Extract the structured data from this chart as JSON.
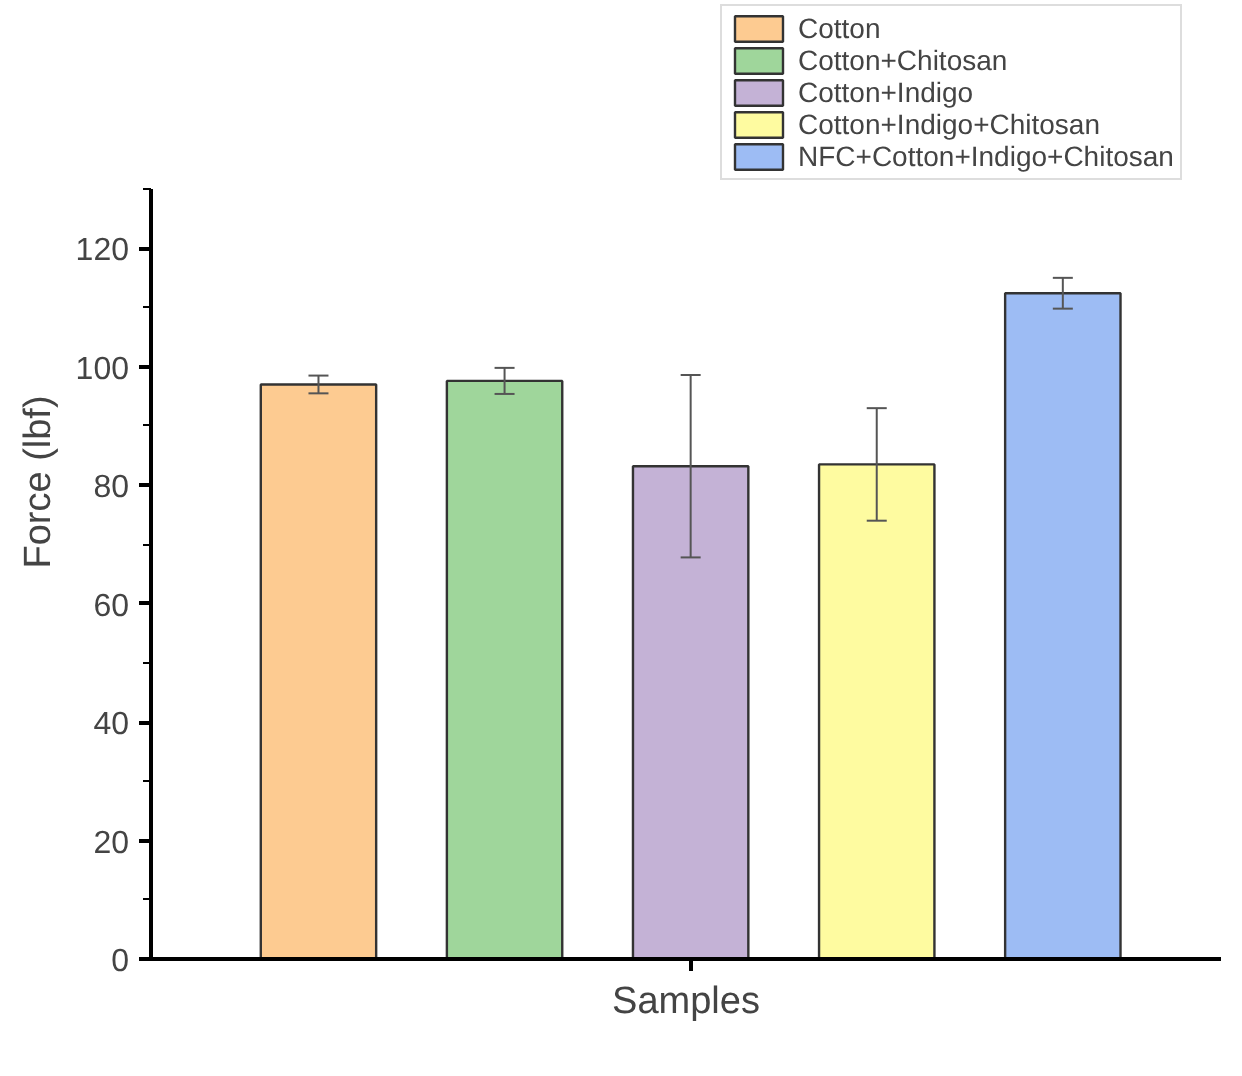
{
  "chart_data": {
    "type": "bar",
    "xlabel": "Samples",
    "ylabel": "Force (lbf)",
    "categories": [
      null,
      null,
      null,
      null,
      null
    ],
    "series": [
      {
        "name": "Cotton",
        "color": "#fdcb91",
        "values": [
          97,
          null,
          null,
          null,
          null
        ],
        "errors": [
          1.5,
          null,
          null,
          null,
          null
        ]
      },
      {
        "name": "Cotton+Chitosan",
        "color": "#9fd69b",
        "values": [
          null,
          97.6,
          null,
          null,
          null
        ],
        "errors": [
          null,
          2.2,
          null,
          null,
          null
        ]
      },
      {
        "name": "Cotton+Indigo",
        "color": "#c4b2d6",
        "values": [
          null,
          null,
          83.2,
          null,
          null
        ],
        "errors": [
          null,
          null,
          15.4,
          null,
          null
        ]
      },
      {
        "name": "Cotton+Indigo+Chitosan",
        "color": "#fefba0",
        "values": [
          null,
          null,
          null,
          83.5,
          null
        ],
        "errors": [
          null,
          null,
          null,
          9.5,
          null
        ]
      },
      {
        "name": "NFC+Cotton+Indigo+Chitosan",
        "color": "#9dbcf4",
        "values": [
          null,
          null,
          null,
          null,
          112.4
        ],
        "errors": [
          null,
          null,
          null,
          null,
          2.6
        ]
      }
    ],
    "ylim": [
      0,
      130
    ],
    "yticks": [
      0,
      20,
      40,
      60,
      80,
      100,
      120
    ],
    "grid": false,
    "legend": "top right"
  }
}
